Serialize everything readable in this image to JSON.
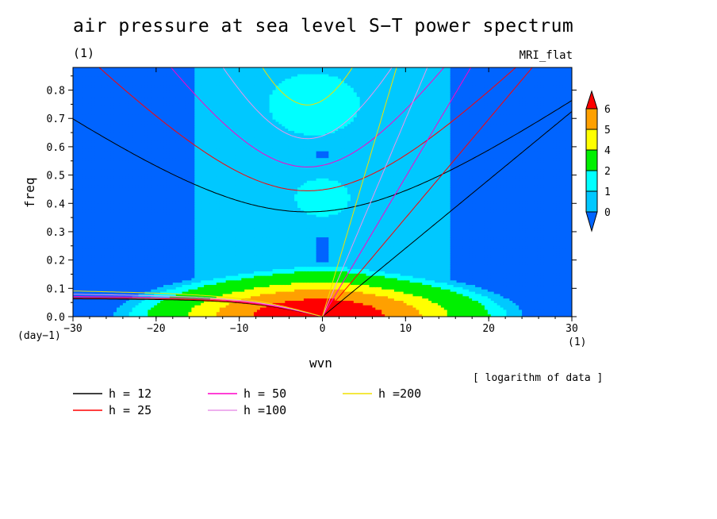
{
  "title": "air pressure at sea level S−T power spectrum",
  "title_unit": "(1)",
  "model": "MRI_flat",
  "note": "[ logarithm of data ]",
  "chart_data": {
    "type": "heatmap",
    "xlabel": "wvn",
    "ylabel": "freq",
    "x_unit": "(1)",
    "y_unit": "(day−1)",
    "xlim": [
      -30,
      30
    ],
    "ylim": [
      0,
      0.88
    ],
    "x_ticks": [
      -30,
      -20,
      -10,
      0,
      10,
      20,
      30
    ],
    "x_tick_labels": [
      "−30",
      "−20",
      "−10",
      "0",
      "10",
      "20",
      "30"
    ],
    "y_ticks": [
      0.0,
      0.1,
      0.2,
      0.3,
      0.4,
      0.5,
      0.6,
      0.7,
      0.8
    ],
    "y_tick_labels": [
      "0.0",
      "0.1",
      "0.2",
      "0.3",
      "0.4",
      "0.5",
      "0.6",
      "0.7",
      "0.8"
    ],
    "colorbar": {
      "levels": [
        0,
        1,
        2,
        4,
        5,
        6
      ],
      "level_labels": [
        "0",
        "1",
        "2",
        "4",
        "5",
        "6"
      ],
      "colors": [
        "#0064ff",
        "#00c8ff",
        "#00ffff",
        "#00f000",
        "#ffff00",
        "#ffa000",
        "#ff0000"
      ]
    },
    "dispersion_curves": [
      {
        "name": "h = 12",
        "h": 12,
        "color": "#000000"
      },
      {
        "name": "h = 25",
        "h": 25,
        "color": "#ff0000"
      },
      {
        "name": "h = 50",
        "h": 50,
        "color": "#ff00c8"
      },
      {
        "name": "h =100",
        "h": 100,
        "color": "#e896e8"
      },
      {
        "name": "h =200",
        "h": 200,
        "color": "#f0e000"
      }
    ]
  }
}
